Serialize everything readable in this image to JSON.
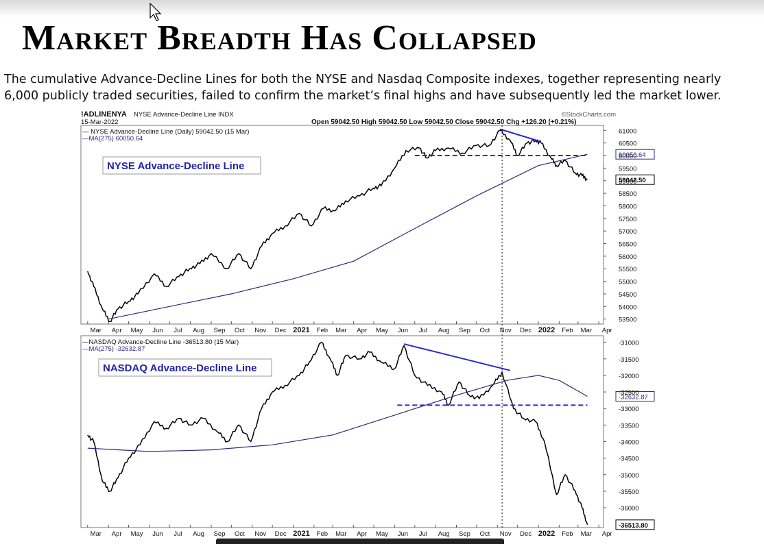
{
  "slide": {
    "title": "Market Breadth Has Collapsed",
    "subtitle": "The cumulative Advance-Decline Lines for both the NYSE and Nasdaq Composite indexes, together representing nearly 6,000 publicly traded securities, failed to confirm the market’s final highs and have subsequently led the market lower."
  },
  "colors": {
    "price": "#000000",
    "ma": "#2b2b7a",
    "annotation": "#2a2acf",
    "label_text": "#2222aa"
  },
  "chart_data": [
    {
      "type": "line",
      "symbol": "!ADLINENYA",
      "symbol_desc": "NYSE Advance-Decline Line INDX",
      "date": "15-Mar-2022",
      "source": "©StockCharts.com",
      "ohlc_text": "Open 59042.50  High 59042.50  Low 59042.50  Close 59042.50  Chg +126.20 (+0.21%)",
      "legend": [
        "— NYSE Advance-Decline Line (Daily) 59042.50 (15 Mar)",
        "—MA(275) 60050.64"
      ],
      "label": "NYSE Advance-Decline Line",
      "x_ticks": [
        "Mar",
        "Apr",
        "May",
        "Jun",
        "Jul",
        "Aug",
        "Sep",
        "Oct",
        "Nov",
        "Dec",
        "2021",
        "Feb",
        "Mar",
        "Apr",
        "May",
        "Jun",
        "Jul",
        "Aug",
        "Sep",
        "Oct",
        "Nov",
        "Dec",
        "2022",
        "Feb",
        "Mar",
        "Apr"
      ],
      "y_ticks": [
        61000,
        60500,
        60000,
        59500,
        59000,
        58500,
        58000,
        57500,
        57000,
        56500,
        56000,
        55500,
        55000,
        54500,
        54000,
        53500
      ],
      "ylim": [
        53300,
        61200
      ],
      "last_value_tag": "59042.50",
      "ma_value_tag": "60050.64",
      "series": [
        {
          "name": "NYSE Advance-Decline Line (Daily)",
          "points": [
            [
              "2020-03-01",
              55400
            ],
            [
              "2020-03-10",
              54800
            ],
            [
              "2020-03-23",
              53900
            ],
            [
              "2020-04-03",
              53400
            ],
            [
              "2020-04-15",
              53900
            ],
            [
              "2020-05-01",
              54200
            ],
            [
              "2020-05-15",
              54500
            ],
            [
              "2020-06-08",
              55300
            ],
            [
              "2020-06-26",
              54800
            ],
            [
              "2020-07-15",
              55200
            ],
            [
              "2020-07-31",
              55500
            ],
            [
              "2020-08-15",
              55700
            ],
            [
              "2020-09-01",
              56100
            ],
            [
              "2020-09-24",
              55500
            ],
            [
              "2020-10-12",
              56100
            ],
            [
              "2020-10-30",
              55500
            ],
            [
              "2020-11-15",
              56400
            ],
            [
              "2020-12-01",
              56900
            ],
            [
              "2020-12-20",
              57200
            ],
            [
              "2021-01-10",
              57700
            ],
            [
              "2021-01-28",
              57200
            ],
            [
              "2021-02-15",
              57900
            ],
            [
              "2021-03-04",
              57800
            ],
            [
              "2021-03-20",
              58200
            ],
            [
              "2021-04-10",
              58400
            ],
            [
              "2021-04-30",
              58700
            ],
            [
              "2021-05-12",
              58800
            ],
            [
              "2021-06-01",
              59500
            ],
            [
              "2021-06-18",
              60200
            ],
            [
              "2021-07-08",
              60300
            ],
            [
              "2021-07-19",
              59900
            ],
            [
              "2021-08-01",
              60200
            ],
            [
              "2021-08-20",
              60300
            ],
            [
              "2021-09-10",
              60100
            ],
            [
              "2021-09-30",
              60400
            ],
            [
              "2021-10-20",
              60400
            ],
            [
              "2021-11-05",
              61000
            ],
            [
              "2021-11-20",
              60600
            ],
            [
              "2021-12-01",
              60000
            ],
            [
              "2021-12-15",
              60500
            ],
            [
              "2021-12-28",
              60600
            ],
            [
              "2022-01-05",
              60500
            ],
            [
              "2022-01-20",
              59900
            ],
            [
              "2022-01-28",
              59600
            ],
            [
              "2022-02-10",
              59800
            ],
            [
              "2022-02-25",
              59300
            ],
            [
              "2022-03-07",
              59200
            ],
            [
              "2022-03-15",
              59042.5
            ]
          ]
        },
        {
          "name": "MA(275)",
          "points": [
            [
              "2020-04-01",
              53500
            ],
            [
              "2020-07-01",
              54000
            ],
            [
              "2020-10-01",
              54500
            ],
            [
              "2021-01-01",
              55100
            ],
            [
              "2021-04-01",
              55800
            ],
            [
              "2021-07-01",
              57100
            ],
            [
              "2021-10-01",
              58400
            ],
            [
              "2022-01-01",
              59600
            ],
            [
              "2022-03-15",
              60050.64
            ]
          ]
        }
      ],
      "annotations": [
        {
          "kind": "trendline",
          "from": [
            "2021-11-05",
            61050
          ],
          "to": [
            "2022-01-05",
            60550
          ]
        },
        {
          "kind": "support",
          "from": [
            "2021-07-01",
            60000
          ],
          "to": [
            "2022-03-15",
            60000
          ]
        }
      ]
    },
    {
      "type": "line",
      "legend": [
        "—NASDAQ Advance-Decline Line -36513.80 (15 Mar)",
        "—MA(275) -32632.87"
      ],
      "label": "NASDAQ Advance-Decline Line",
      "x_ticks": [
        "Mar",
        "Apr",
        "May",
        "Jun",
        "Jul",
        "Aug",
        "Sep",
        "Oct",
        "Nov",
        "Dec",
        "2021",
        "Feb",
        "Mar",
        "Apr",
        "May",
        "Jun",
        "Jul",
        "Aug",
        "Sep",
        "Oct",
        "Nov",
        "Dec",
        "2022",
        "Feb",
        "Mar",
        "Apr"
      ],
      "y_ticks": [
        -31000,
        -31500,
        -32000,
        -32500,
        -33000,
        -33500,
        -34000,
        -34500,
        -35000,
        -35500,
        -36000
      ],
      "ylim": [
        -36600,
        -30800
      ],
      "last_value_tag": "-36513.80",
      "ma_value_tag": "-32632.87",
      "series": [
        {
          "name": "NASDAQ Advance-Decline Line",
          "points": [
            [
              "2020-03-01",
              -33800
            ],
            [
              "2020-03-10",
              -34000
            ],
            [
              "2020-03-23",
              -35200
            ],
            [
              "2020-04-03",
              -35500
            ],
            [
              "2020-04-15",
              -35100
            ],
            [
              "2020-05-01",
              -34500
            ],
            [
              "2020-05-18",
              -34100
            ],
            [
              "2020-06-08",
              -33400
            ],
            [
              "2020-06-26",
              -33600
            ],
            [
              "2020-07-15",
              -33300
            ],
            [
              "2020-08-01",
              -33500
            ],
            [
              "2020-08-20",
              -33300
            ],
            [
              "2020-09-10",
              -33700
            ],
            [
              "2020-09-25",
              -34000
            ],
            [
              "2020-10-12",
              -33500
            ],
            [
              "2020-10-30",
              -34000
            ],
            [
              "2020-11-15",
              -33000
            ],
            [
              "2020-12-01",
              -32500
            ],
            [
              "2020-12-20",
              -32300
            ],
            [
              "2021-01-10",
              -32000
            ],
            [
              "2021-01-25",
              -31600
            ],
            [
              "2021-02-12",
              -31000
            ],
            [
              "2021-02-25",
              -31500
            ],
            [
              "2021-03-08",
              -32000
            ],
            [
              "2021-03-20",
              -31400
            ],
            [
              "2021-04-10",
              -31500
            ],
            [
              "2021-04-25",
              -31300
            ],
            [
              "2021-05-12",
              -31600
            ],
            [
              "2021-06-01",
              -31800
            ],
            [
              "2021-06-15",
              -31100
            ],
            [
              "2021-07-01",
              -32000
            ],
            [
              "2021-07-20",
              -32300
            ],
            [
              "2021-08-10",
              -32500
            ],
            [
              "2021-08-20",
              -32900
            ],
            [
              "2021-09-05",
              -32200
            ],
            [
              "2021-09-20",
              -32600
            ],
            [
              "2021-10-05",
              -32700
            ],
            [
              "2021-10-25",
              -32300
            ],
            [
              "2021-11-08",
              -31900
            ],
            [
              "2021-11-25",
              -33000
            ],
            [
              "2021-12-10",
              -33300
            ],
            [
              "2021-12-28",
              -33400
            ],
            [
              "2022-01-10",
              -34000
            ],
            [
              "2022-01-28",
              -35600
            ],
            [
              "2022-02-10",
              -35000
            ],
            [
              "2022-02-25",
              -35500
            ],
            [
              "2022-03-07",
              -36000
            ],
            [
              "2022-03-15",
              -36513.8
            ]
          ]
        },
        {
          "name": "MA(275)",
          "points": [
            [
              "2020-03-01",
              -34200
            ],
            [
              "2020-06-01",
              -34300
            ],
            [
              "2020-09-01",
              -34250
            ],
            [
              "2020-12-01",
              -34100
            ],
            [
              "2021-03-01",
              -33800
            ],
            [
              "2021-06-01",
              -33200
            ],
            [
              "2021-09-01",
              -32600
            ],
            [
              "2021-11-15",
              -32150
            ],
            [
              "2022-01-01",
              -32000
            ],
            [
              "2022-02-01",
              -32150
            ],
            [
              "2022-03-15",
              -32632.87
            ]
          ]
        }
      ],
      "annotations": [
        {
          "kind": "trendline",
          "from": [
            "2021-06-15",
            -31050
          ],
          "to": [
            "2021-11-20",
            -31850
          ]
        },
        {
          "kind": "support",
          "from": [
            "2021-06-05",
            -32900
          ],
          "to": [
            "2022-03-15",
            -32900
          ]
        }
      ],
      "marker_date": "2021-11-08"
    }
  ]
}
